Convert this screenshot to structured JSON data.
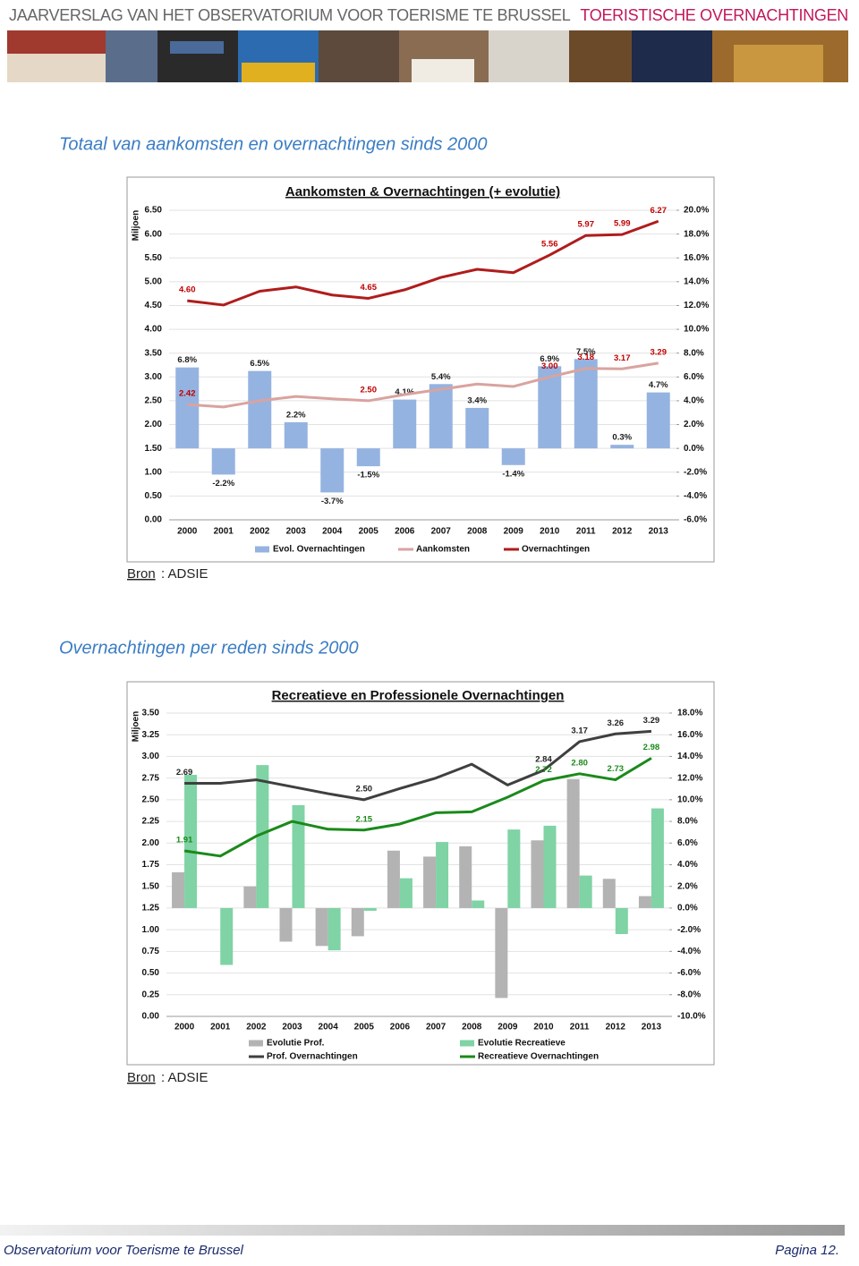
{
  "header": {
    "title": "JAARVERSLAG VAN HET OBSERVATORIUM VOOR TOERISME TE BRUSSEL",
    "section_title": "TOERISTISCHE OVERNACHTINGEN"
  },
  "sections": [
    {
      "title": "Totaal van aankomsten en overnachtingen sinds 2000",
      "source_label": "Bron",
      "source": ": ADSIE"
    },
    {
      "title": "Overnachtingen per reden sinds 2000",
      "source_label": "Bron",
      "source": ": ADSIE"
    }
  ],
  "chart_data": [
    {
      "type": "combo",
      "title": "Aankomsten & Overnachtingen (+ evolutie)",
      "y_label": "Miljoen",
      "grid": true,
      "legend": "bottom",
      "categories": [
        "2000",
        "2001",
        "2002",
        "2003",
        "2004",
        "2005",
        "2006",
        "2007",
        "2008",
        "2009",
        "2010",
        "2011",
        "2012",
        "2013"
      ],
      "ylim": [
        0,
        6.5
      ],
      "yticks": [
        {
          "value": 0,
          "label": "0.00"
        },
        {
          "value": 0.5,
          "label": "0.50"
        },
        {
          "value": 1,
          "label": "1.00"
        },
        {
          "value": 1.5,
          "label": "1.50"
        },
        {
          "value": 2,
          "label": "2.00"
        },
        {
          "value": 2.5,
          "label": "2.50"
        },
        {
          "value": 3,
          "label": "3.00"
        },
        {
          "value": 3.5,
          "label": "3.50"
        },
        {
          "value": 4,
          "label": "4.00"
        },
        {
          "value": 4.5,
          "label": "4.50"
        },
        {
          "value": 5,
          "label": "5.00"
        },
        {
          "value": 5.5,
          "label": "5.50"
        },
        {
          "value": 6,
          "label": "6.00"
        },
        {
          "value": 6.5,
          "label": "6.50"
        }
      ],
      "y2lim": [
        -6,
        20
      ],
      "y2ticks": [
        {
          "value": -6,
          "label": "-6.0%"
        },
        {
          "value": -4,
          "label": "-4.0%"
        },
        {
          "value": -2,
          "label": "-2.0%"
        },
        {
          "value": 0,
          "label": "0.0%"
        },
        {
          "value": 2,
          "label": "2.0%"
        },
        {
          "value": 4,
          "label": "4.0%"
        },
        {
          "value": 6,
          "label": "6.0%"
        },
        {
          "value": 8,
          "label": "8.0%"
        },
        {
          "value": 10,
          "label": "10.0%"
        },
        {
          "value": 12,
          "label": "12.0%"
        },
        {
          "value": 14,
          "label": "14.0%"
        },
        {
          "value": 16,
          "label": "16.0%"
        },
        {
          "value": 18,
          "label": "18.0%"
        },
        {
          "value": 20,
          "label": "20.0%"
        }
      ],
      "series": [
        {
          "name": "Evol. Overnachtingen",
          "type": "bar",
          "axis": "y2",
          "color": "#95b3e0",
          "label_color": "#1a1a1a",
          "values": [
            6.8,
            -2.2,
            6.5,
            2.2,
            -3.7,
            -1.5,
            4.1,
            5.4,
            3.4,
            -1.4,
            6.9,
            7.5,
            0.3,
            4.7
          ],
          "value_labels": [
            "6.8%",
            "-2.2%",
            "6.5%",
            "2.2%",
            "-3.7%",
            "-1.5%",
            "4.1%",
            "5.4%",
            "3.4%",
            "-1.4%",
            "6.9%",
            "7.5%",
            "0.3%",
            "4.7%"
          ]
        },
        {
          "name": "Aankomsten",
          "type": "line",
          "color": "#d9a3a0",
          "label_color": "#c00000",
          "values": [
            2.42,
            2.37,
            2.5,
            2.59,
            2.54,
            2.5,
            2.63,
            2.74,
            2.85,
            2.8,
            3.0,
            3.18,
            3.17,
            3.29
          ],
          "value_labels": [
            "2.42",
            null,
            null,
            null,
            null,
            "2.50",
            null,
            null,
            null,
            null,
            "3.00",
            "3.18",
            "3.17",
            "3.29"
          ]
        },
        {
          "name": "Overnachtingen",
          "type": "line",
          "color": "#b01c1c",
          "label_color": "#c00000",
          "values": [
            4.6,
            4.51,
            4.8,
            4.89,
            4.72,
            4.65,
            4.83,
            5.09,
            5.26,
            5.19,
            5.56,
            5.97,
            5.99,
            6.27
          ],
          "value_labels": [
            "4.60",
            null,
            null,
            null,
            null,
            "4.65",
            null,
            null,
            null,
            null,
            "5.56",
            "5.97",
            "5.99",
            "6.27"
          ]
        }
      ]
    },
    {
      "type": "combo",
      "title": "Recreatieve en Professionele Overnachtingen",
      "y_label": "Miljoen",
      "grid": true,
      "legend": "bottom",
      "categories": [
        "2000",
        "2001",
        "2002",
        "2003",
        "2004",
        "2005",
        "2006",
        "2007",
        "2008",
        "2009",
        "2010",
        "2011",
        "2012",
        "2013"
      ],
      "ylim": [
        0,
        3.5
      ],
      "yticks": [
        {
          "value": 0,
          "label": "0.00"
        },
        {
          "value": 0.25,
          "label": "0.25"
        },
        {
          "value": 0.5,
          "label": "0.50"
        },
        {
          "value": 0.75,
          "label": "0.75"
        },
        {
          "value": 1,
          "label": "1.00"
        },
        {
          "value": 1.25,
          "label": "1.25"
        },
        {
          "value": 1.5,
          "label": "1.50"
        },
        {
          "value": 1.75,
          "label": "1.75"
        },
        {
          "value": 2,
          "label": "2.00"
        },
        {
          "value": 2.25,
          "label": "2.25"
        },
        {
          "value": 2.5,
          "label": "2.50"
        },
        {
          "value": 2.75,
          "label": "2.75"
        },
        {
          "value": 3,
          "label": "3.00"
        },
        {
          "value": 3.25,
          "label": "3.25"
        },
        {
          "value": 3.5,
          "label": "3.50"
        }
      ],
      "y2lim": [
        -10,
        18
      ],
      "y2ticks": [
        {
          "value": -10,
          "label": "-10.0%"
        },
        {
          "value": -8,
          "label": "-8.0%"
        },
        {
          "value": -6,
          "label": "-6.0%"
        },
        {
          "value": -4,
          "label": "-4.0%"
        },
        {
          "value": -2,
          "label": "-2.0%"
        },
        {
          "value": 0,
          "label": "0.0%"
        },
        {
          "value": 2,
          "label": "2.0%"
        },
        {
          "value": 4,
          "label": "4.0%"
        },
        {
          "value": 6,
          "label": "6.0%"
        },
        {
          "value": 8,
          "label": "8.0%"
        },
        {
          "value": 10,
          "label": "10.0%"
        },
        {
          "value": 12,
          "label": "12.0%"
        },
        {
          "value": 14,
          "label": "14.0%"
        },
        {
          "value": 16,
          "label": "16.0%"
        },
        {
          "value": 18,
          "label": "18.0%"
        }
      ],
      "series": [
        {
          "name": "Evolutie Prof.",
          "type": "bar",
          "axis": "y2",
          "color": "#b3b3b3",
          "values": [
            3.3,
            0.0,
            2.0,
            -3.1,
            -3.5,
            -2.6,
            5.3,
            4.75,
            5.7,
            -8.3,
            6.25,
            11.9,
            2.7,
            1.1
          ]
        },
        {
          "name": "Evolutie Recreatieve",
          "type": "bar",
          "axis": "y2",
          "color": "#7fd3a5",
          "values": [
            12.3,
            -5.25,
            13.2,
            9.5,
            -3.9,
            -0.25,
            2.75,
            6.1,
            0.7,
            7.25,
            7.6,
            3.0,
            -2.4,
            9.2
          ]
        },
        {
          "name": "Prof. Overnachtingen",
          "type": "line",
          "color": "#3f3f3f",
          "label_color": "#222222",
          "values": [
            2.69,
            2.69,
            2.73,
            2.65,
            2.57,
            2.5,
            2.63,
            2.75,
            2.91,
            2.67,
            2.84,
            3.17,
            3.26,
            3.29
          ],
          "value_labels": [
            "2.69",
            null,
            null,
            null,
            null,
            "2.50",
            null,
            null,
            null,
            null,
            "2.84",
            "3.17",
            "3.26",
            "3.29"
          ]
        },
        {
          "name": "Recreatieve Overnachtingen",
          "type": "line",
          "color": "#1a8a1a",
          "label_color": "#1a8a1a",
          "values": [
            1.91,
            1.85,
            2.08,
            2.25,
            2.16,
            2.15,
            2.22,
            2.35,
            2.36,
            2.53,
            2.72,
            2.8,
            2.73,
            2.98
          ],
          "value_labels": [
            "1.91",
            null,
            null,
            null,
            null,
            "2.15",
            null,
            null,
            null,
            null,
            "2.72",
            "2.80",
            "2.73",
            "2.98"
          ]
        }
      ]
    }
  ],
  "footer": {
    "left": "Observatorium voor Toerisme te Brussel",
    "right": "Pagina 12."
  }
}
